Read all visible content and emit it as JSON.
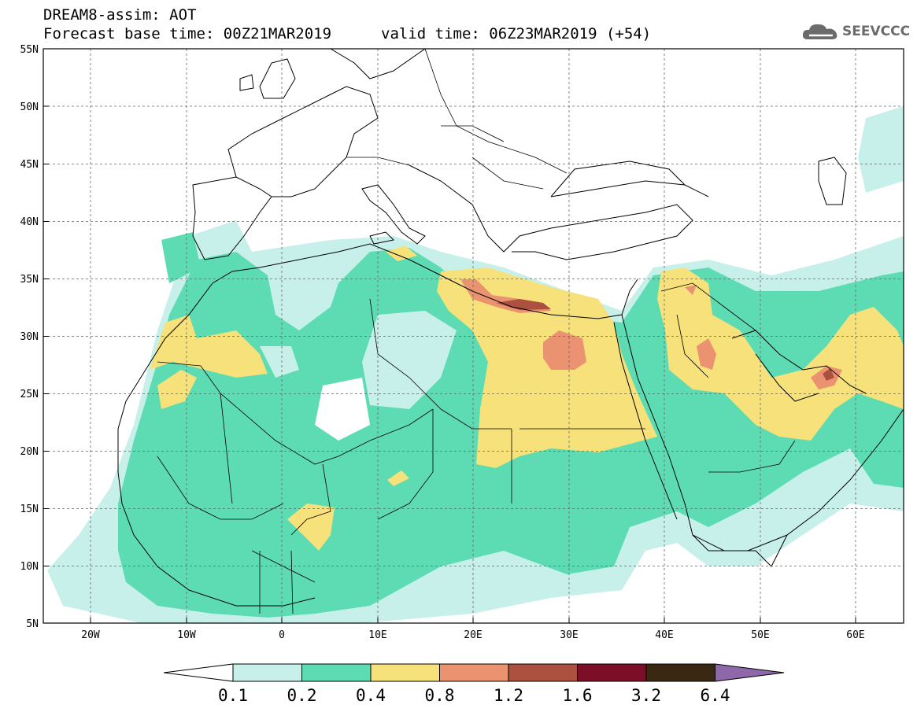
{
  "header": {
    "title": "DREAM8-assim: AOT",
    "base_time": "Forecast base time: 00Z21MAR2019",
    "valid_time": "valid time: 06Z23MAR2019 (+54)"
  },
  "logo": {
    "text": "SEEVCCC",
    "icon": "cloud-icon"
  },
  "map": {
    "lat_labels": [
      "55N",
      "50N",
      "45N",
      "40N",
      "35N",
      "30N",
      "25N",
      "20N",
      "15N",
      "10N",
      "5N"
    ],
    "lon_labels": [
      "20W",
      "10W",
      "0",
      "10E",
      "20E",
      "30E",
      "40E",
      "50E",
      "60E"
    ],
    "lat_range": [
      5,
      55
    ],
    "lon_range": [
      -25,
      65
    ],
    "grid": "dashed"
  },
  "colorbar": {
    "labels": [
      "0.1",
      "0.2",
      "0.4",
      "0.8",
      "1.2",
      "1.6",
      "3.2",
      "6.4"
    ],
    "colors": [
      "#ffffff",
      "#c8f0eb",
      "#5ddcb3",
      "#f7e17a",
      "#eb9370",
      "#ac5140",
      "#7c0e27",
      "#3b2812",
      "#8e68a8"
    ]
  },
  "field_colors": {
    "c01": "#c8f0eb",
    "c02": "#5ddcb3",
    "c04": "#f7e17a",
    "c08": "#eb9370",
    "c12": "#ac5140"
  }
}
